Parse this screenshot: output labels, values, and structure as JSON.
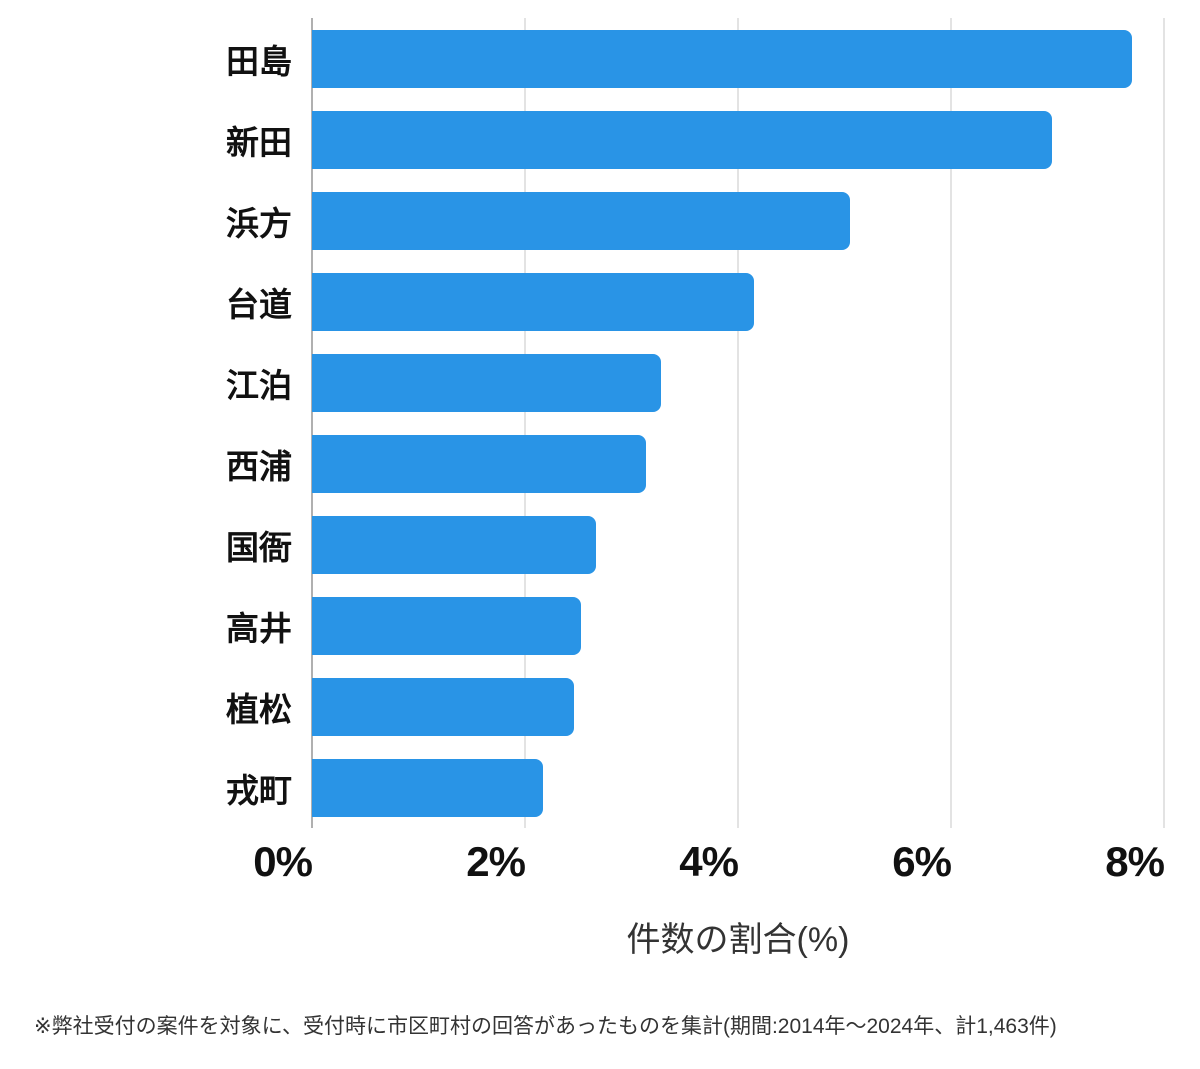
{
  "chart_data": {
    "type": "bar",
    "orientation": "horizontal",
    "title": "",
    "categories": [
      "田島",
      "新田",
      "浜方",
      "台道",
      "江泊",
      "西浦",
      "国衙",
      "高井",
      "植松",
      "戎町"
    ],
    "values": [
      7.7,
      6.95,
      5.05,
      4.15,
      3.28,
      3.14,
      2.67,
      2.53,
      2.46,
      2.17
    ],
    "xlabel": "件数の割合(%)",
    "ylabel": "",
    "xlim": [
      0,
      8
    ],
    "xticks": [
      0,
      2,
      4,
      6,
      8
    ],
    "xtick_labels": [
      "0%",
      "2%",
      "4%",
      "6%",
      "8%"
    ],
    "grid": true,
    "legend": false,
    "bar_color": "#2994E6"
  },
  "footnote": "※弊社受付の案件を対象に、受付時に市区町村の回答があったものを集計(期間:2014年〜2024年、計1,463件)",
  "colors": {
    "bar": "#2994E6",
    "gridline": "#e3e3e3",
    "axis_line": "#b0b0b0",
    "label_text": "#111111",
    "muted_text": "#333333",
    "background": "#ffffff"
  }
}
